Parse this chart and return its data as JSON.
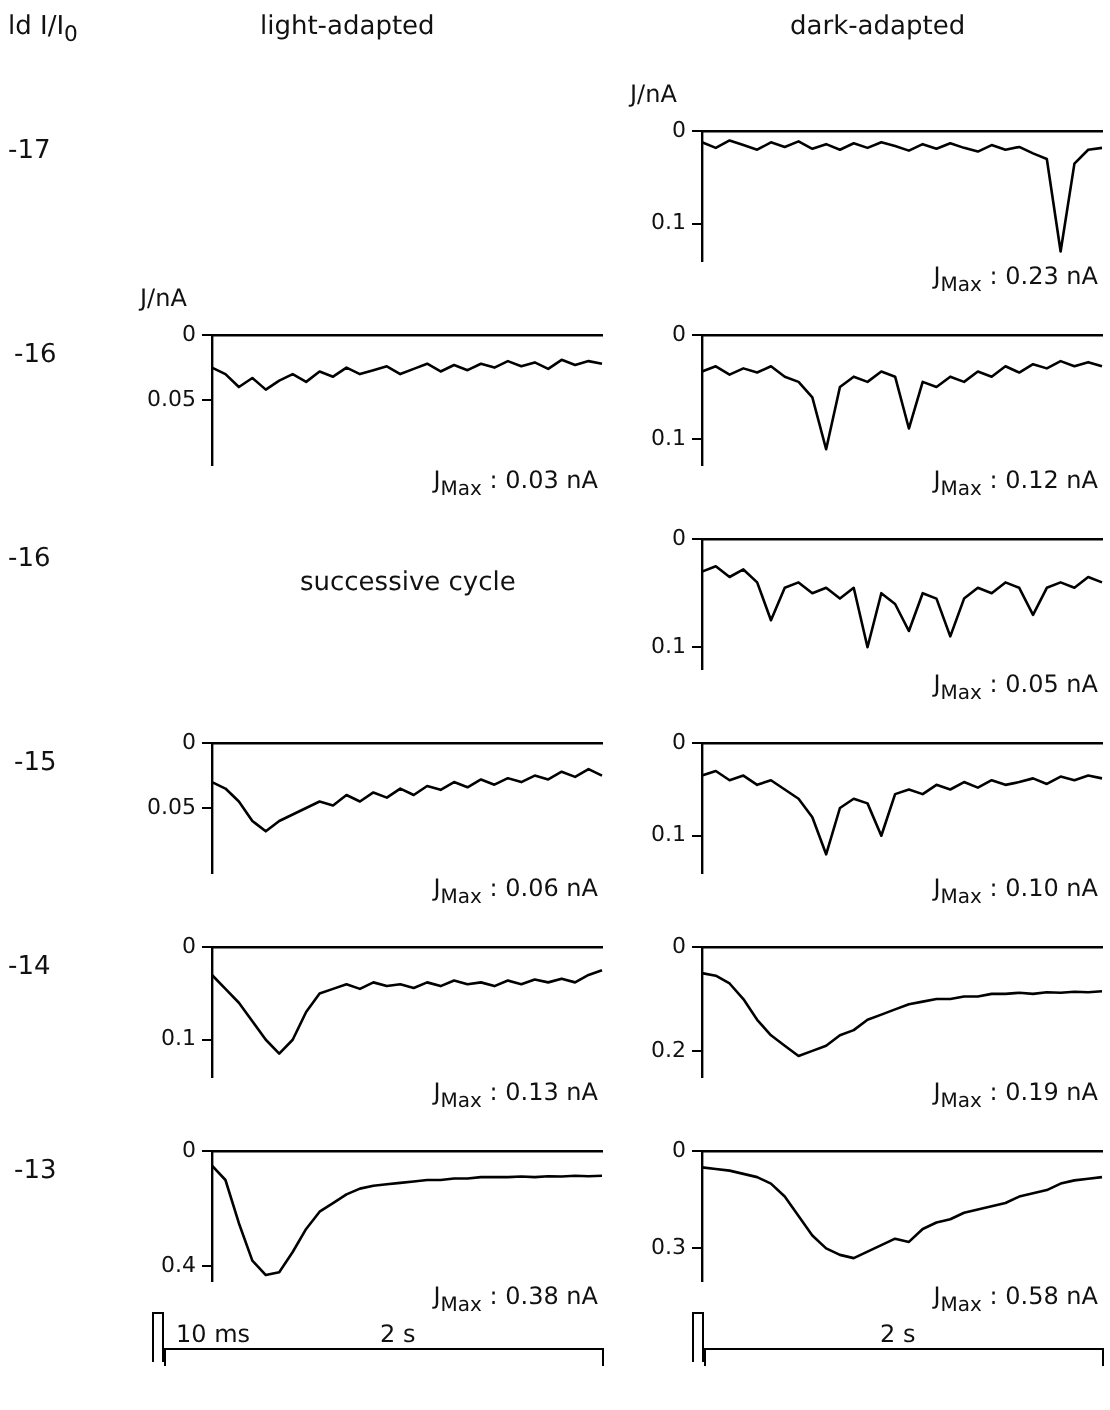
{
  "chart_data": [
    {
      "type": "other",
      "annotations": [
        "ld I/I$_{0}$",
        "light-adapted",
        "dark-adapted"
      ]
    },
    {
      "type": "other",
      "title": "-17"
    },
    {
      "type": "line",
      "ylabel": "J/nA",
      "annotations": [
        "J$_{Max}$ : 0.23 nA"
      ],
      "categories": [
        null,
        null,
        null,
        null,
        null,
        null,
        null,
        null,
        null,
        null,
        null,
        null,
        null,
        null,
        null,
        null,
        null,
        null,
        null,
        null,
        null,
        null,
        null,
        null,
        null,
        null,
        null,
        null,
        null,
        null
      ],
      "series": [
        {
          "color": "#000000",
          "values": [
            0.012,
            0.018,
            0.01,
            0.015,
            0.02,
            0.012,
            0.017,
            0.011,
            0.019,
            0.014,
            0.02,
            0.013,
            0.018,
            0.012,
            0.016,
            0.021,
            0.014,
            0.019,
            0.013,
            0.018,
            0.022,
            0.015,
            0.02,
            0.017,
            0.024,
            0.03,
            0.13,
            0.035,
            0.02,
            0.018
          ]
        }
      ],
      "ylim": [
        0.14,
        0
      ],
      "yticks": [
        0,
        0.1
      ],
      "tick_labels": "y",
      "grid": false,
      "legend": false,
      "marker": "none",
      "line_style": "solid"
    },
    {
      "type": "other",
      "title": "-16"
    },
    {
      "type": "line",
      "ylabel": "J/nA",
      "annotations": [
        "J$_{Max}$ : 0.03 nA"
      ],
      "categories": [
        null,
        null,
        null,
        null,
        null,
        null,
        null,
        null,
        null,
        null,
        null,
        null,
        null,
        null,
        null,
        null,
        null,
        null,
        null,
        null,
        null,
        null,
        null,
        null,
        null,
        null,
        null,
        null,
        null,
        null
      ],
      "series": [
        {
          "color": "#000000",
          "values": [
            0.025,
            0.03,
            0.04,
            0.033,
            0.042,
            0.035,
            0.03,
            0.036,
            0.028,
            0.032,
            0.025,
            0.03,
            0.027,
            0.024,
            0.03,
            0.026,
            0.022,
            0.028,
            0.023,
            0.027,
            0.022,
            0.025,
            0.02,
            0.024,
            0.021,
            0.026,
            0.019,
            0.023,
            0.02,
            0.022
          ]
        }
      ],
      "ylim": [
        0.1,
        0
      ],
      "yticks": [
        0,
        0.05
      ],
      "tick_labels": "y",
      "grid": false,
      "legend": false,
      "marker": "none",
      "line_style": "solid"
    },
    {
      "type": "line",
      "annotations": [
        "J$_{Max}$ : 0.12 nA"
      ],
      "categories": [
        null,
        null,
        null,
        null,
        null,
        null,
        null,
        null,
        null,
        null,
        null,
        null,
        null,
        null,
        null,
        null,
        null,
        null,
        null,
        null,
        null,
        null,
        null,
        null,
        null,
        null,
        null,
        null,
        null,
        null
      ],
      "series": [
        {
          "color": "#000000",
          "values": [
            0.035,
            0.03,
            0.038,
            0.032,
            0.036,
            0.03,
            0.04,
            0.045,
            0.06,
            0.11,
            0.05,
            0.04,
            0.045,
            0.035,
            0.04,
            0.09,
            0.045,
            0.05,
            0.04,
            0.045,
            0.035,
            0.04,
            0.03,
            0.036,
            0.028,
            0.032,
            0.025,
            0.03,
            0.026,
            0.03
          ]
        }
      ],
      "ylim": [
        0.125,
        0
      ],
      "yticks": [
        0,
        0.1
      ],
      "tick_labels": "y",
      "grid": false,
      "legend": false,
      "marker": "none",
      "line_style": "solid"
    },
    {
      "type": "other",
      "title": "-16"
    },
    {
      "type": "line",
      "subtitle": "successive cycle",
      "annotations": [
        "J$_{Max}$ : 0.05 nA"
      ],
      "categories": [
        null,
        null,
        null,
        null,
        null,
        null,
        null,
        null,
        null,
        null,
        null,
        null,
        null,
        null,
        null,
        null,
        null,
        null,
        null,
        null,
        null,
        null,
        null,
        null,
        null,
        null,
        null,
        null,
        null,
        null
      ],
      "series": [
        {
          "color": "#000000",
          "values": [
            0.03,
            0.025,
            0.035,
            0.028,
            0.04,
            0.075,
            0.045,
            0.04,
            0.05,
            0.045,
            0.055,
            0.045,
            0.1,
            0.05,
            0.06,
            0.085,
            0.05,
            0.055,
            0.09,
            0.055,
            0.045,
            0.05,
            0.04,
            0.045,
            0.07,
            0.045,
            0.04,
            0.045,
            0.035,
            0.04
          ]
        }
      ],
      "ylim": [
        0.12,
        0
      ],
      "yticks": [
        0,
        0.1
      ],
      "tick_labels": "y",
      "grid": false,
      "legend": false,
      "marker": "none",
      "line_style": "solid"
    },
    {
      "type": "other",
      "title": "-15"
    },
    {
      "type": "line",
      "annotations": [
        "J$_{Max}$ : 0.06 nA"
      ],
      "categories": [
        null,
        null,
        null,
        null,
        null,
        null,
        null,
        null,
        null,
        null,
        null,
        null,
        null,
        null,
        null,
        null,
        null,
        null,
        null,
        null,
        null,
        null,
        null,
        null,
        null,
        null,
        null,
        null,
        null,
        null
      ],
      "series": [
        {
          "color": "#000000",
          "values": [
            0.03,
            0.035,
            0.045,
            0.06,
            0.068,
            0.06,
            0.055,
            0.05,
            0.045,
            0.048,
            0.04,
            0.045,
            0.038,
            0.042,
            0.035,
            0.04,
            0.033,
            0.036,
            0.03,
            0.034,
            0.028,
            0.032,
            0.027,
            0.03,
            0.025,
            0.028,
            0.022,
            0.026,
            0.02,
            0.025
          ]
        }
      ],
      "ylim": [
        0.1,
        0
      ],
      "yticks": [
        0,
        0.05
      ],
      "tick_labels": "y",
      "grid": false,
      "legend": false,
      "marker": "none",
      "line_style": "solid"
    },
    {
      "type": "line",
      "annotations": [
        "J$_{Max}$ : 0.10 nA"
      ],
      "categories": [
        null,
        null,
        null,
        null,
        null,
        null,
        null,
        null,
        null,
        null,
        null,
        null,
        null,
        null,
        null,
        null,
        null,
        null,
        null,
        null,
        null,
        null,
        null,
        null,
        null,
        null,
        null,
        null,
        null,
        null
      ],
      "series": [
        {
          "color": "#000000",
          "values": [
            0.035,
            0.03,
            0.04,
            0.035,
            0.045,
            0.04,
            0.05,
            0.06,
            0.08,
            0.12,
            0.07,
            0.06,
            0.065,
            0.1,
            0.055,
            0.05,
            0.055,
            0.045,
            0.05,
            0.042,
            0.048,
            0.04,
            0.045,
            0.042,
            0.038,
            0.044,
            0.036,
            0.04,
            0.035,
            0.038
          ]
        }
      ],
      "ylim": [
        0.14,
        0
      ],
      "yticks": [
        0,
        0.1
      ],
      "tick_labels": "y",
      "grid": false,
      "legend": false,
      "marker": "none",
      "line_style": "solid"
    },
    {
      "type": "other",
      "title": "-14"
    },
    {
      "type": "line",
      "annotations": [
        "J$_{Max}$ : 0.13 nA"
      ],
      "categories": [
        null,
        null,
        null,
        null,
        null,
        null,
        null,
        null,
        null,
        null,
        null,
        null,
        null,
        null,
        null,
        null,
        null,
        null,
        null,
        null,
        null,
        null,
        null,
        null,
        null,
        null,
        null,
        null,
        null,
        null
      ],
      "series": [
        {
          "color": "#000000",
          "values": [
            0.03,
            0.045,
            0.06,
            0.08,
            0.1,
            0.115,
            0.1,
            0.07,
            0.05,
            0.045,
            0.04,
            0.045,
            0.038,
            0.042,
            0.04,
            0.044,
            0.038,
            0.042,
            0.036,
            0.04,
            0.038,
            0.042,
            0.036,
            0.04,
            0.035,
            0.038,
            0.034,
            0.038,
            0.03,
            0.025
          ]
        }
      ],
      "ylim": [
        0.14,
        0
      ],
      "yticks": [
        0,
        0.1
      ],
      "tick_labels": "y",
      "grid": false,
      "legend": false,
      "marker": "none",
      "line_style": "solid"
    },
    {
      "type": "line",
      "annotations": [
        "J$_{Max}$ : 0.19 nA"
      ],
      "categories": [
        null,
        null,
        null,
        null,
        null,
        null,
        null,
        null,
        null,
        null,
        null,
        null,
        null,
        null,
        null,
        null,
        null,
        null,
        null,
        null,
        null,
        null,
        null,
        null,
        null,
        null,
        null,
        null,
        null,
        null
      ],
      "series": [
        {
          "color": "#000000",
          "values": [
            0.05,
            0.055,
            0.07,
            0.1,
            0.14,
            0.17,
            0.19,
            0.21,
            0.2,
            0.19,
            0.17,
            0.16,
            0.14,
            0.13,
            0.12,
            0.11,
            0.105,
            0.1,
            0.1,
            0.095,
            0.095,
            0.09,
            0.09,
            0.088,
            0.09,
            0.087,
            0.088,
            0.086,
            0.087,
            0.085
          ]
        }
      ],
      "ylim": [
        0.25,
        0
      ],
      "yticks": [
        0,
        0.2
      ],
      "tick_labels": "y",
      "grid": false,
      "legend": false,
      "marker": "none",
      "line_style": "solid"
    },
    {
      "type": "other",
      "title": "-13"
    },
    {
      "type": "line",
      "annotations": [
        "J$_{Max}$ : 0.38 nA"
      ],
      "categories": [
        null,
        null,
        null,
        null,
        null,
        null,
        null,
        null,
        null,
        null,
        null,
        null,
        null,
        null,
        null,
        null,
        null,
        null,
        null,
        null,
        null,
        null,
        null,
        null,
        null,
        null,
        null,
        null,
        null,
        null
      ],
      "series": [
        {
          "color": "#000000",
          "values": [
            0.05,
            0.1,
            0.25,
            0.38,
            0.43,
            0.42,
            0.35,
            0.27,
            0.21,
            0.18,
            0.15,
            0.13,
            0.12,
            0.115,
            0.11,
            0.105,
            0.1,
            0.1,
            0.095,
            0.095,
            0.09,
            0.09,
            0.09,
            0.088,
            0.09,
            0.087,
            0.088,
            0.085,
            0.087,
            0.085
          ]
        }
      ],
      "ylim": [
        0.45,
        0
      ],
      "yticks": [
        0,
        0.4
      ],
      "tick_labels": "y",
      "grid": false,
      "legend": false,
      "marker": "none",
      "line_style": "solid"
    },
    {
      "type": "line",
      "annotations": [
        "J$_{Max}$ : 0.58 nA"
      ],
      "categories": [
        null,
        null,
        null,
        null,
        null,
        null,
        null,
        null,
        null,
        null,
        null,
        null,
        null,
        null,
        null,
        null,
        null,
        null,
        null,
        null,
        null,
        null,
        null,
        null,
        null,
        null,
        null,
        null,
        null,
        null
      ],
      "series": [
        {
          "color": "#000000",
          "values": [
            0.05,
            0.055,
            0.06,
            0.07,
            0.08,
            0.1,
            0.14,
            0.2,
            0.26,
            0.3,
            0.32,
            0.33,
            0.31,
            0.29,
            0.27,
            0.28,
            0.24,
            0.22,
            0.21,
            0.19,
            0.18,
            0.17,
            0.16,
            0.14,
            0.13,
            0.12,
            0.1,
            0.09,
            0.085,
            0.08
          ]
        }
      ],
      "ylim": [
        0.4,
        0
      ],
      "yticks": [
        0,
        0.3
      ],
      "tick_labels": "y",
      "grid": false,
      "legend": false,
      "marker": "none",
      "line_style": "solid"
    },
    {
      "type": "other",
      "annotations": [
        "10 ms",
        "2 s",
        "2 s"
      ]
    }
  ]
}
